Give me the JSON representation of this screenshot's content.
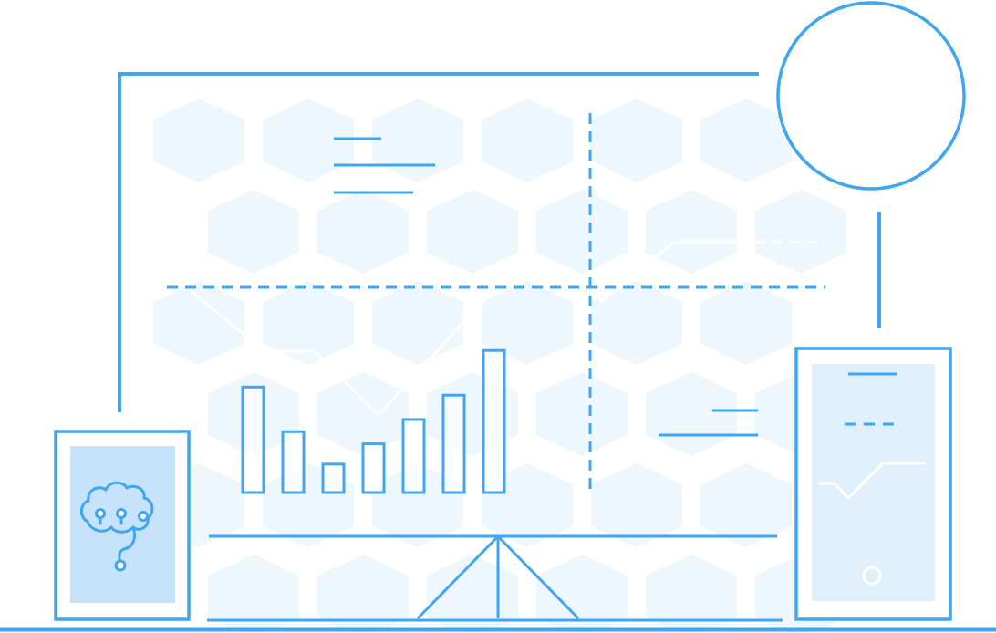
{
  "colors": {
    "stroke": "#3fa6f2",
    "hex_fill": "#eef7fe",
    "panel_fill": "#c6e3fb",
    "panel_fill_light": "#dff0fc",
    "white_line": "#ffffff"
  },
  "icons": {
    "tablet": "brain-icon",
    "phone": "home-button-icon",
    "badge": "circle-badge-icon"
  },
  "chart_data": {
    "type": "bar",
    "categories": [
      "",
      "",
      "",
      "",
      "",
      "",
      ""
    ],
    "values": [
      26,
      15,
      7,
      12,
      18,
      24,
      35
    ],
    "ylim": [
      0,
      40
    ],
    "grid": false
  }
}
